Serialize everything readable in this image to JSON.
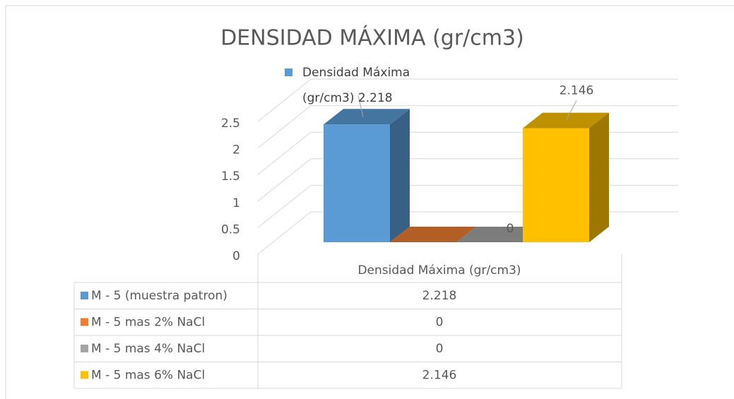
{
  "chart_data": {
    "type": "bar3d",
    "title": "DENSIDAD MÁXIMA (gr/cm3)",
    "categories": [
      "Densidad Máxima (gr/cm3)"
    ],
    "series": [
      {
        "name": "M - 5 (muestra patron)",
        "color": "#5b9bd5",
        "values": [
          2.218
        ],
        "data_label": "category_value"
      },
      {
        "name": "M - 5 mas 2% NaCl",
        "color": "#ed7d31",
        "values": [
          0
        ],
        "data_label": "none"
      },
      {
        "name": "M - 5 mas 4% NaCl",
        "color": "#a5a5a5",
        "values": [
          0
        ],
        "data_label": "value"
      },
      {
        "name": "M - 5 mas 6% NaCl",
        "color": "#ffc000",
        "values": [
          2.146
        ],
        "data_label": "value"
      }
    ],
    "ylim": [
      0,
      2.5
    ],
    "yticks": [
      0,
      0.5,
      1,
      1.5,
      2,
      2.5
    ],
    "grid": true,
    "data_table": true
  }
}
